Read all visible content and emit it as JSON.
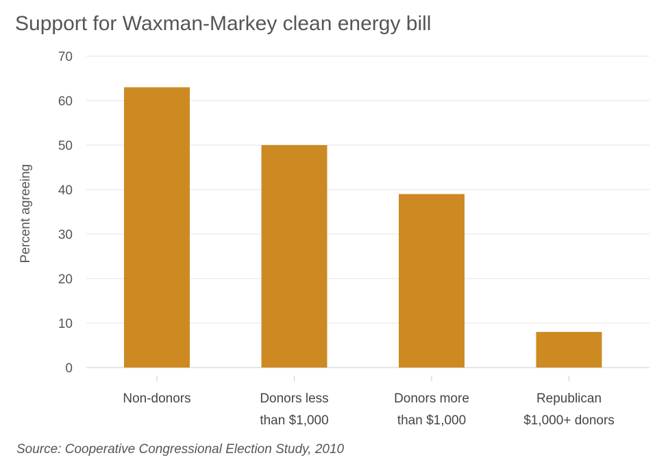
{
  "chart_data": {
    "type": "bar",
    "title": "Support for Waxman-Markey clean energy bill",
    "ylabel": "Percent agreeing",
    "xlabel": "",
    "categories": [
      [
        "Non-donors"
      ],
      [
        "Donors less",
        "than $1,000"
      ],
      [
        "Donors more",
        "than $1,000"
      ],
      [
        "Republican",
        "$1,000+ donors"
      ]
    ],
    "values": [
      63,
      50,
      39,
      8
    ],
    "ylim": [
      0,
      70
    ],
    "yticks": [
      0,
      10,
      20,
      30,
      40,
      50,
      60,
      70
    ],
    "grid": true,
    "bar_color": "#CD8A23",
    "source": "Source: Cooperative Congressional Election Study, 2010"
  }
}
